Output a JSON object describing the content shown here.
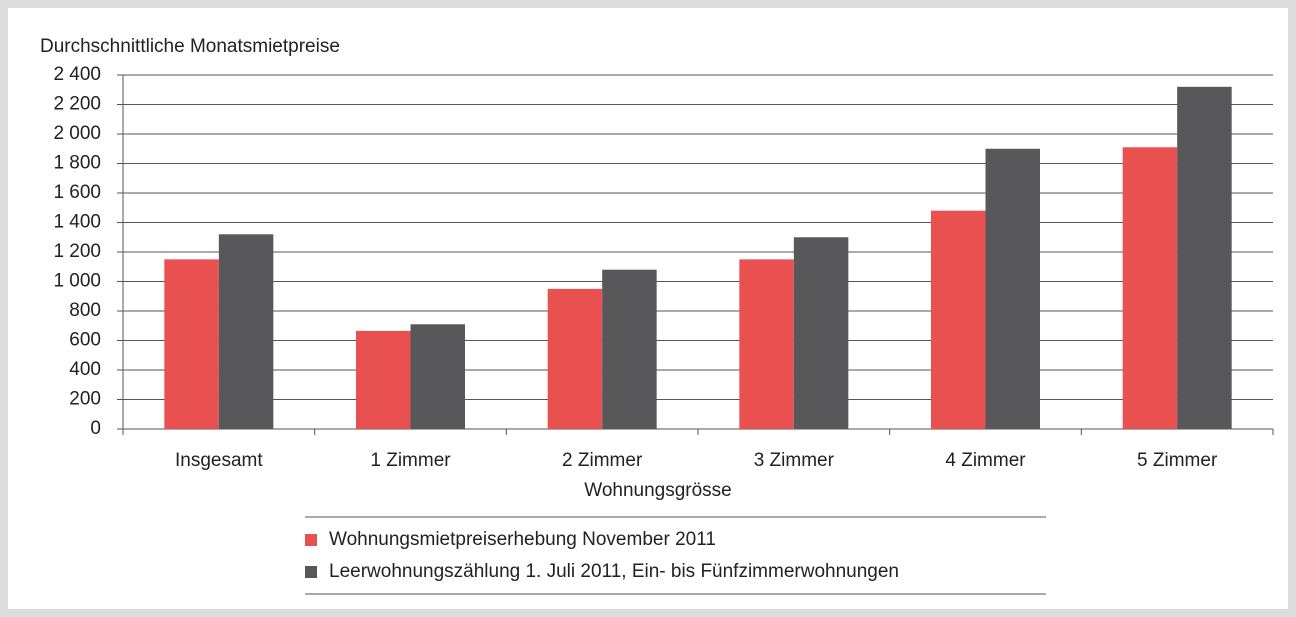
{
  "chart_data": {
    "type": "bar",
    "y_label": "Durchschnittliche Monatsmietpreise",
    "x_label": "Wohnungsgrösse",
    "categories": [
      "Insgesamt",
      "1 Zimmer",
      "2 Zimmer",
      "3 Zimmer",
      "4 Zimmer",
      "5 Zimmer"
    ],
    "series": [
      {
        "name": "Wohnungsmietpreiserhebung November 2011",
        "color": "#e8514f",
        "values": [
          1150,
          665,
          950,
          1150,
          1480,
          1910
        ]
      },
      {
        "name": "Leerwohnungszählung 1. Juli 2011, Ein- bis Fünfzimmerwohnungen",
        "color": "#58585a",
        "values": [
          1320,
          710,
          1080,
          1300,
          1900,
          2320
        ]
      }
    ],
    "ylim": [
      0,
      2400
    ],
    "yticks": [
      0,
      200,
      400,
      600,
      800,
      {
        "value": 1000,
        "label": "1 000"
      },
      {
        "value": 1200,
        "label": "1 200"
      },
      {
        "value": 1400,
        "label": "1 400"
      },
      {
        "value": 1600,
        "label": "1 600"
      },
      {
        "value": 1800,
        "label": "1 800"
      },
      {
        "value": 2000,
        "label": "2 000"
      },
      {
        "value": 2200,
        "label": "2 200"
      },
      {
        "value": 2400,
        "label": "2 400"
      }
    ],
    "grid": true,
    "legend": "bottom"
  }
}
